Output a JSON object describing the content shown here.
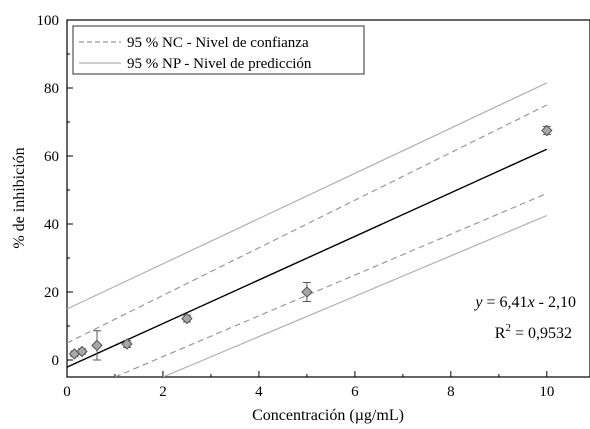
{
  "chart_data": {
    "type": "scatter",
    "xlabel": "Concentración (µg/mL)",
    "ylabel": "% de inhibición",
    "xlim": [
      0,
      10.9
    ],
    "ylim": [
      -5,
      100
    ],
    "xticks": [
      0,
      2,
      4,
      6,
      8,
      10
    ],
    "yticks": [
      0,
      20,
      40,
      60,
      80,
      100
    ],
    "x_tick_labels": [
      "0",
      "2",
      "4",
      "6",
      "8",
      "10"
    ],
    "y_tick_labels": [
      "0",
      "20",
      "40",
      "60",
      "80",
      "100"
    ],
    "grid": false,
    "legend_placement": "top-left",
    "legend": [
      {
        "label": "95 % NC - Nivel de confianza",
        "style": "dashed"
      },
      {
        "label": "95 % NP - Nivel de predicción",
        "style": "solid-light"
      }
    ],
    "points": [
      {
        "x": 0.156,
        "y": 1.8,
        "err": 0.8
      },
      {
        "x": 0.3125,
        "y": 2.5,
        "err": 0.8
      },
      {
        "x": 0.625,
        "y": 4.3,
        "err": 4.3
      },
      {
        "x": 1.25,
        "y": 4.7,
        "err": 1.0
      },
      {
        "x": 2.5,
        "y": 12.2,
        "err": 1.0
      },
      {
        "x": 5.0,
        "y": 20.0,
        "err": 2.8
      },
      {
        "x": 10.0,
        "y": 67.5,
        "err": 1.2
      }
    ],
    "fit": {
      "slope": 6.41,
      "intercept": -2.1,
      "x_range": [
        0,
        10
      ]
    },
    "confidence_band": {
      "upper": [
        [
          0,
          5.0
        ],
        [
          10,
          75.0
        ]
      ],
      "lower": [
        [
          1.0,
          -5.0
        ],
        [
          10,
          49.0
        ]
      ]
    },
    "prediction_band": {
      "upper": [
        [
          0,
          15.0
        ],
        [
          10,
          81.5
        ]
      ],
      "lower": [
        [
          2.0,
          -5.0
        ],
        [
          10,
          42.5
        ]
      ]
    },
    "annotations": {
      "equation_y": "y",
      "equation_mid": " = 6,41",
      "equation_x": "x",
      "equation_end": " - 2,10",
      "r2_prefix": "R",
      "r2_sup": "2",
      "r2_value": " = 0,9532"
    },
    "colors": {
      "marker_fill": "#a8a8a8",
      "marker_stroke": "#555555",
      "fit_line": "#000000",
      "confidence_line": "#999999",
      "prediction_line": "#b0b0b0",
      "axis": "#000000"
    }
  }
}
